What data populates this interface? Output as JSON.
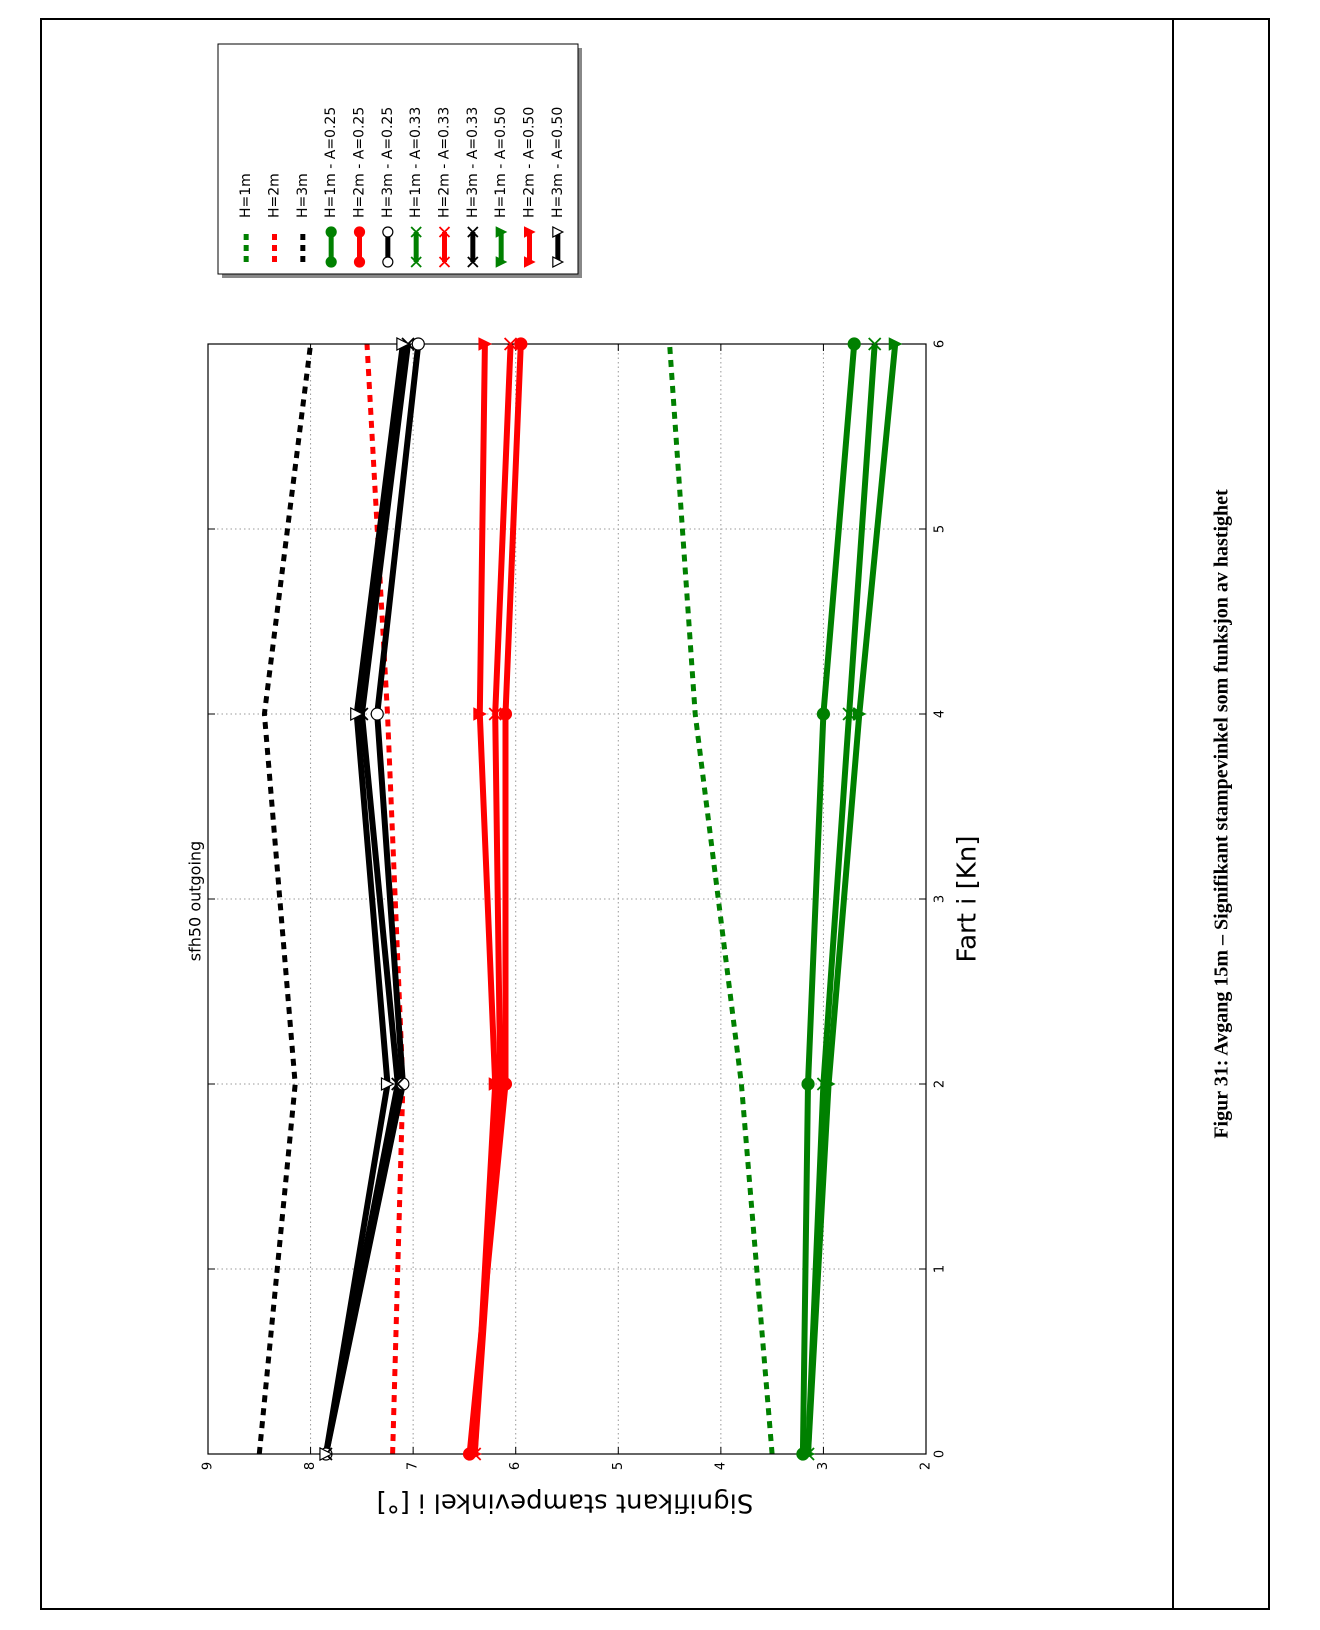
{
  "caption": "Figur 31: Avgang 15m – Signifikant stampevinkel som funksjon av hastighet",
  "chart_data": {
    "type": "line",
    "title": "sfh50 outgoing",
    "xlabel": "Fart i [Kn]",
    "ylabel": "Signifikant stampevinkel i [°]",
    "xlim": [
      0,
      6
    ],
    "ylim": [
      2,
      9
    ],
    "xticks": [
      0,
      1,
      2,
      3,
      4,
      5,
      6
    ],
    "yticks": [
      2,
      3,
      4,
      5,
      6,
      7,
      8,
      9
    ],
    "grid": true,
    "legend_position": "right",
    "series": [
      {
        "name": "H=1m",
        "color": "#008000",
        "style": "dashed",
        "marker": "none",
        "x": [
          0,
          2,
          4,
          6
        ],
        "y": [
          3.5,
          3.8,
          4.25,
          4.5
        ]
      },
      {
        "name": "H=2m",
        "color": "#ff0000",
        "style": "dashed",
        "marker": "none",
        "x": [
          0,
          2,
          4,
          6
        ],
        "y": [
          7.2,
          7.1,
          7.25,
          7.45
        ]
      },
      {
        "name": "H=3m",
        "color": "#000000",
        "style": "dashed",
        "marker": "none",
        "x": [
          0,
          2,
          4,
          6
        ],
        "y": [
          8.5,
          8.15,
          8.45,
          8.0
        ]
      },
      {
        "name": "H=1m - A=0.25",
        "color": "#008000",
        "style": "solid",
        "marker": "circle",
        "x": [
          0,
          2,
          4,
          6
        ],
        "y": [
          3.2,
          3.15,
          3.0,
          2.7
        ]
      },
      {
        "name": "H=2m - A=0.25",
        "color": "#ff0000",
        "style": "solid",
        "marker": "circle",
        "x": [
          0,
          2,
          4,
          6
        ],
        "y": [
          6.45,
          6.1,
          6.1,
          5.95
        ]
      },
      {
        "name": "H=3m - A=0.25",
        "color": "#000000",
        "style": "solid",
        "marker": "circle-open",
        "x": [
          0,
          2,
          4,
          6
        ],
        "y": [
          7.85,
          7.1,
          7.35,
          6.95
        ]
      },
      {
        "name": "H=1m - A=0.33",
        "color": "#008000",
        "style": "solid",
        "marker": "x",
        "x": [
          0,
          2,
          4,
          6
        ],
        "y": [
          3.15,
          3.0,
          2.75,
          2.5
        ]
      },
      {
        "name": "H=2m - A=0.33",
        "color": "#ff0000",
        "style": "solid",
        "marker": "x",
        "x": [
          0,
          2,
          4,
          6
        ],
        "y": [
          6.4,
          6.15,
          6.2,
          6.05
        ]
      },
      {
        "name": "H=3m - A=0.33",
        "color": "#000000",
        "style": "solid",
        "marker": "x",
        "x": [
          0,
          2,
          4,
          6
        ],
        "y": [
          7.85,
          7.15,
          7.5,
          7.05
        ]
      },
      {
        "name": "H=1m - A=0.50",
        "color": "#008000",
        "style": "solid",
        "marker": "triangle",
        "x": [
          0,
          2,
          4,
          6
        ],
        "y": [
          3.15,
          2.95,
          2.65,
          2.3
        ]
      },
      {
        "name": "H=2m - A=0.50",
        "color": "#ff0000",
        "style": "solid",
        "marker": "triangle",
        "x": [
          0,
          2,
          4,
          6
        ],
        "y": [
          6.4,
          6.2,
          6.35,
          6.3
        ]
      },
      {
        "name": "H=3m - A=0.50",
        "color": "#000000",
        "style": "solid",
        "marker": "triangle-open",
        "x": [
          0,
          2,
          4,
          6
        ],
        "y": [
          7.85,
          7.25,
          7.55,
          7.1
        ]
      }
    ]
  }
}
